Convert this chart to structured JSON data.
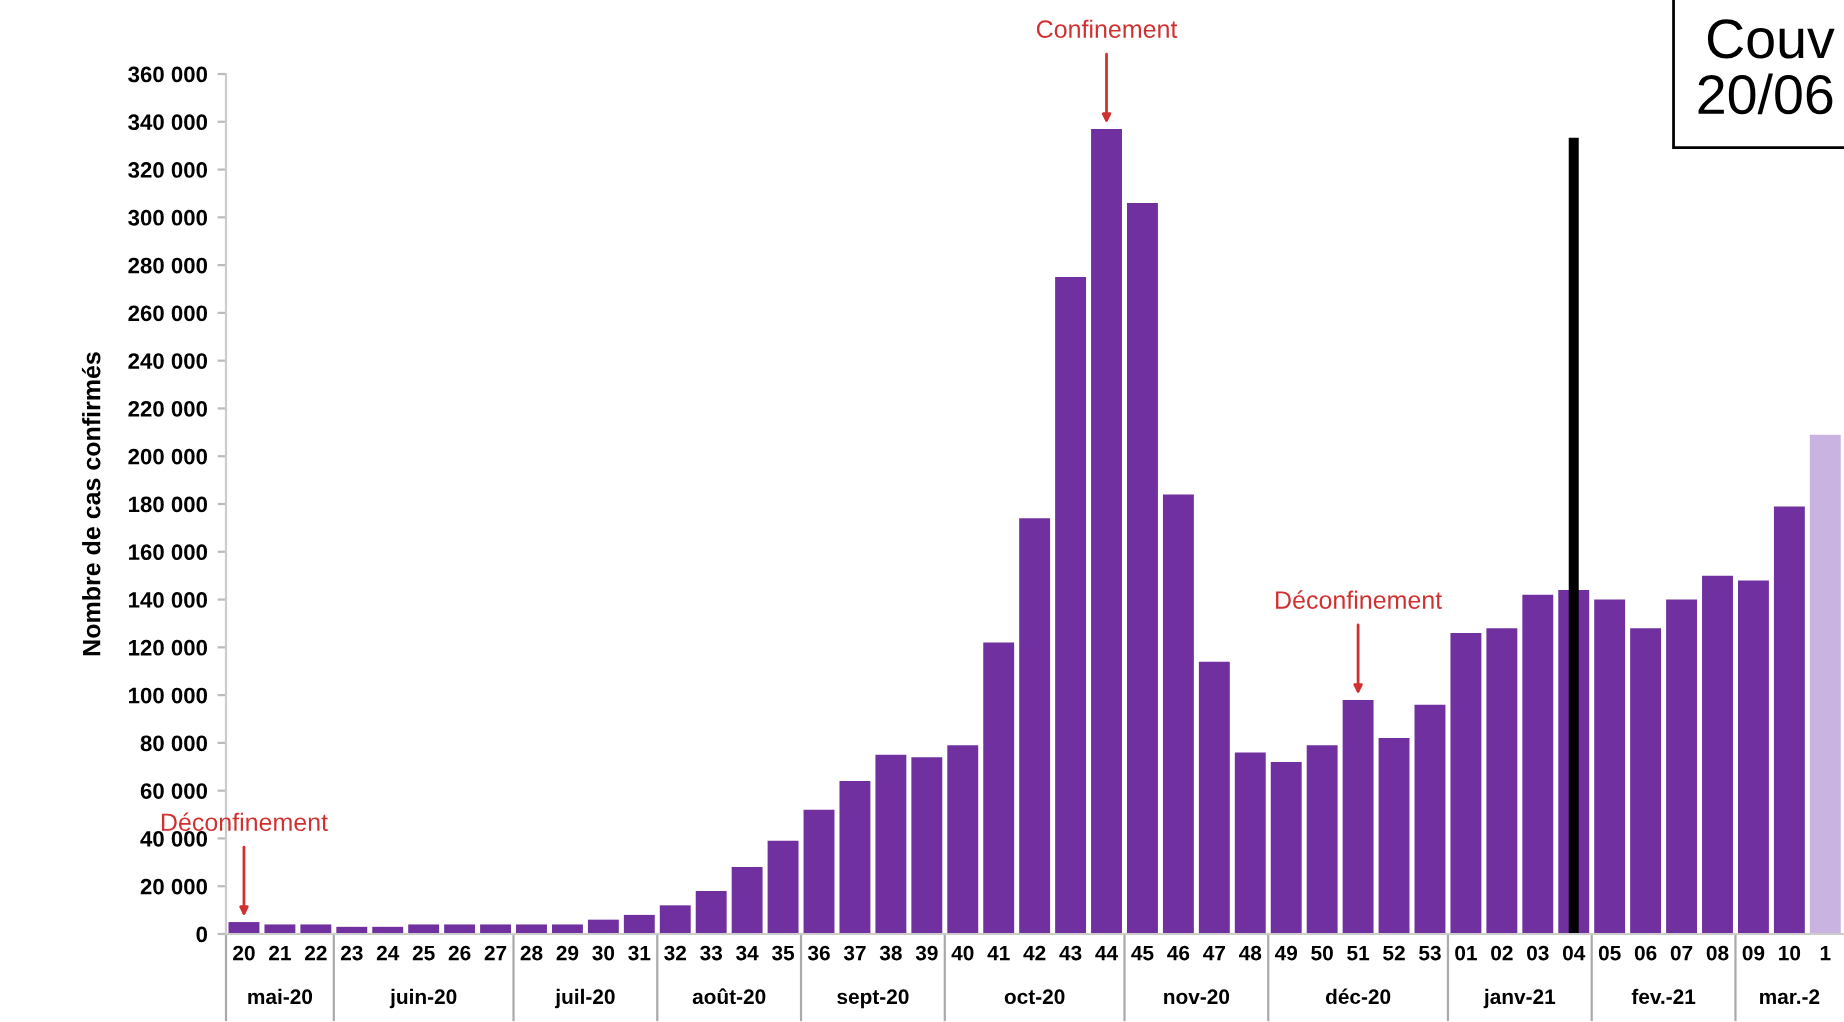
{
  "chart_data": {
    "type": "bar",
    "ylabel": "Nombre de cas confirmés",
    "categories": [
      "20",
      "21",
      "22",
      "23",
      "24",
      "25",
      "26",
      "27",
      "28",
      "29",
      "30",
      "31",
      "32",
      "33",
      "34",
      "35",
      "36",
      "37",
      "38",
      "39",
      "40",
      "41",
      "42",
      "43",
      "44",
      "45",
      "46",
      "47",
      "48",
      "49",
      "50",
      "51",
      "52",
      "53",
      "01",
      "02",
      "03",
      "04",
      "05",
      "06",
      "07",
      "08",
      "09",
      "10",
      "1"
    ],
    "values": [
      5000,
      4000,
      4000,
      3000,
      3000,
      4000,
      4000,
      4000,
      4000,
      4000,
      6000,
      8000,
      12000,
      18000,
      28000,
      39000,
      52000,
      64000,
      75000,
      74000,
      79000,
      122000,
      174000,
      275000,
      337000,
      306000,
      184000,
      114000,
      76000,
      72000,
      79000,
      98000,
      82000,
      96000,
      126000,
      128000,
      142000,
      144000,
      140000,
      128000,
      140000,
      150000,
      148000,
      179000,
      209000
    ],
    "colors": [
      "#7030a0",
      "#7030a0",
      "#7030a0",
      "#7030a0",
      "#7030a0",
      "#7030a0",
      "#7030a0",
      "#7030a0",
      "#7030a0",
      "#7030a0",
      "#7030a0",
      "#7030a0",
      "#7030a0",
      "#7030a0",
      "#7030a0",
      "#7030a0",
      "#7030a0",
      "#7030a0",
      "#7030a0",
      "#7030a0",
      "#7030a0",
      "#7030a0",
      "#7030a0",
      "#7030a0",
      "#7030a0",
      "#7030a0",
      "#7030a0",
      "#7030a0",
      "#7030a0",
      "#7030a0",
      "#7030a0",
      "#7030a0",
      "#7030a0",
      "#7030a0",
      "#7030a0",
      "#7030a0",
      "#7030a0",
      "#7030a0",
      "#7030a0",
      "#7030a0",
      "#7030a0",
      "#7030a0",
      "#7030a0",
      "#7030a0",
      "#c9b3e0"
    ],
    "ylim": [
      0,
      360000
    ],
    "yticks": [
      0,
      {
        "value": 20000,
        "label": "20 000"
      },
      {
        "value": 40000,
        "label": "40 000"
      },
      {
        "value": 60000,
        "label": "60 000"
      },
      {
        "value": 80000,
        "label": "80 000"
      },
      {
        "value": 100000,
        "label": "100 000"
      },
      {
        "value": 120000,
        "label": "120 000"
      },
      {
        "value": 140000,
        "label": "140 000"
      },
      {
        "value": 160000,
        "label": "160 000"
      },
      {
        "value": 180000,
        "label": "180 000"
      },
      {
        "value": 200000,
        "label": "200 000"
      },
      {
        "value": 220000,
        "label": "220 000"
      },
      {
        "value": 240000,
        "label": "240 000"
      },
      {
        "value": 260000,
        "label": "260 000"
      },
      {
        "value": 280000,
        "label": "280 000"
      },
      {
        "value": 300000,
        "label": "300 000"
      },
      {
        "value": 320000,
        "label": "320 000"
      },
      {
        "value": 340000,
        "label": "340 000"
      },
      {
        "value": 360000,
        "label": "360 000"
      }
    ],
    "ref_lines": [
      {
        "axis": "x",
        "value": "04",
        "color": "#000000"
      }
    ],
    "annotations": [
      {
        "text": "Déconfinement",
        "x": "20",
        "y": 5000
      },
      {
        "text": "Confinement",
        "x": "44",
        "y": 337000
      },
      {
        "text": "Déconfinement",
        "x": "51",
        "y": 98000
      },
      "Couv\n20/06",
      "mai-20",
      "juin-20",
      "juil-20",
      "août-20",
      "sept-20",
      "oct-20",
      "nov-20",
      "déc-20",
      "janv-21",
      "fev.-21",
      "mar.-2"
    ],
    "grid": false
  }
}
